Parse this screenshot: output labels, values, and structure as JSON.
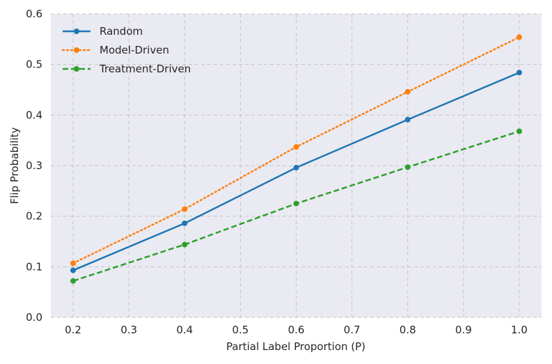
{
  "chart_data": {
    "type": "line",
    "title": "",
    "xlabel": "Partial Label Proportion (P)",
    "ylabel": "Flip Probability",
    "xlim": [
      0.16,
      1.04
    ],
    "ylim": [
      0.0,
      0.6
    ],
    "xticks": [
      0.2,
      0.3,
      0.4,
      0.5,
      0.6,
      0.7,
      0.8,
      0.9,
      1.0
    ],
    "xtick_labels": [
      "0.2",
      "0.3",
      "0.4",
      "0.5",
      "0.6",
      "0.7",
      "0.8",
      "0.9",
      "1.0"
    ],
    "yticks": [
      0.0,
      0.1,
      0.2,
      0.3,
      0.4,
      0.5,
      0.6
    ],
    "ytick_labels": [
      "0.0",
      "0.1",
      "0.2",
      "0.3",
      "0.4",
      "0.5",
      "0.6"
    ],
    "grid": true,
    "legend_position": "top-left",
    "x": [
      0.2,
      0.4,
      0.6,
      0.8,
      1.0
    ],
    "series": [
      {
        "name": "Random",
        "values": [
          0.093,
          0.186,
          0.296,
          0.391,
          0.484
        ],
        "color": "#1f77b4",
        "linestyle": "solid"
      },
      {
        "name": "Model-Driven",
        "values": [
          0.107,
          0.214,
          0.337,
          0.446,
          0.554
        ],
        "color": "#ff7f0e",
        "linestyle": "dotted"
      },
      {
        "name": "Treatment-Driven",
        "values": [
          0.072,
          0.144,
          0.225,
          0.297,
          0.368
        ],
        "color": "#2ca02c",
        "linestyle": "dashed"
      }
    ],
    "colors": {
      "plot_background": "#eaeaf2",
      "grid": "#c4c4c4",
      "text": "#262626"
    }
  }
}
